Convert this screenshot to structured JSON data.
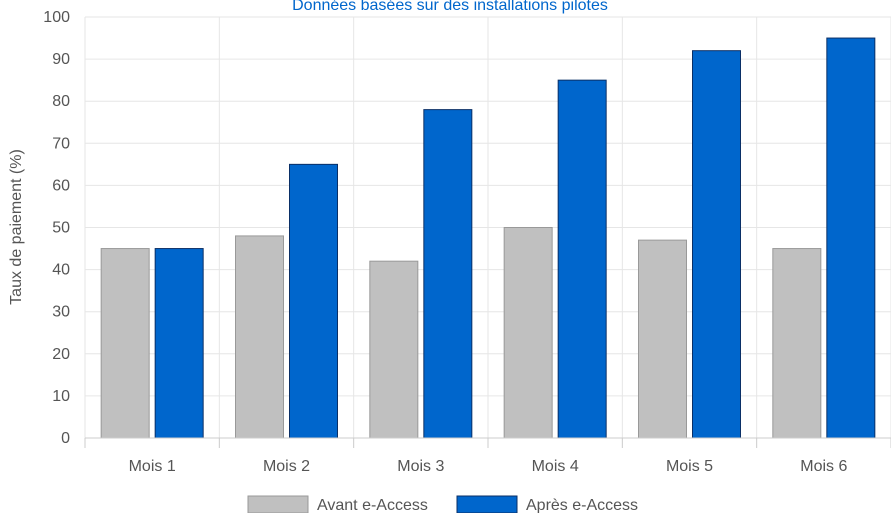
{
  "chart_data": {
    "type": "bar",
    "subtitle": "Données basées sur des installations pilotes",
    "xlabel": "",
    "ylabel": "Taux de paiement (%)",
    "ylim": [
      0,
      100
    ],
    "yticks": [
      0,
      10,
      20,
      30,
      40,
      50,
      60,
      70,
      80,
      90,
      100
    ],
    "grid": true,
    "legend_position": "bottom",
    "categories": [
      "Mois 1",
      "Mois 2",
      "Mois 3",
      "Mois 4",
      "Mois 5",
      "Mois 6"
    ],
    "series": [
      {
        "name": "Avant e-Access",
        "color": "#c0c0c0",
        "stroke": "#999999",
        "values": [
          45,
          48,
          42,
          50,
          47,
          45
        ]
      },
      {
        "name": "Après e-Access",
        "color": "#0066cc",
        "stroke": "#0a2f66",
        "values": [
          45,
          65,
          78,
          85,
          92,
          95
        ]
      }
    ],
    "subtitle_color": "#0066cc"
  }
}
